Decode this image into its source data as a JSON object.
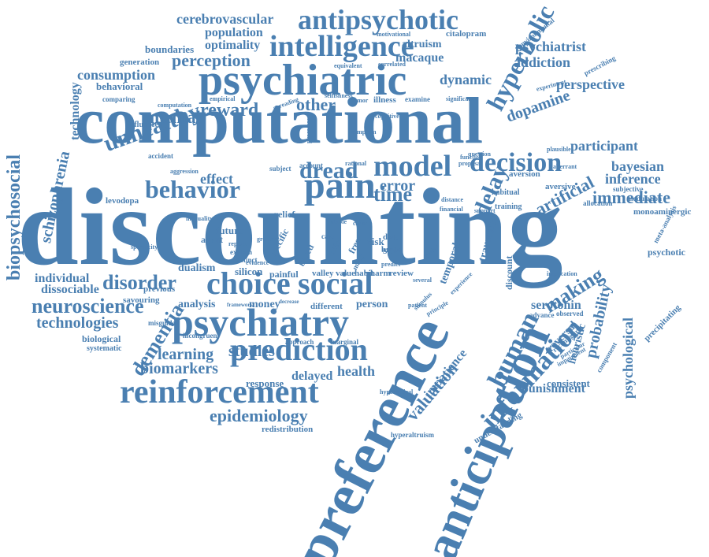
{
  "cloud": {
    "color": "#4a7fb1",
    "words": [
      "discounting",
      "computational",
      "preference",
      "anticipation",
      "psychiatric",
      "psychiatry",
      "antipsychotic",
      "intelligence",
      "reinforcement",
      "information",
      "prediction",
      "pain",
      "choice",
      "social",
      "behavior",
      "model",
      "decision",
      "human",
      "unhealthy",
      "hyperbolic",
      "delay",
      "dread",
      "neuroscience",
      "biopsychosocial",
      "schizophrenia",
      "dementia",
      "valuation",
      "epidemiology",
      "artificial",
      "disorder",
      "immediate",
      "perception",
      "cerebrovascular",
      "reward",
      "making",
      "mental",
      "time",
      "consumption",
      "other",
      "probability",
      "psychological",
      "dopamine",
      "perspective",
      "participant",
      "dynamic",
      "macaque",
      "addiction",
      "psychiatrist",
      "population",
      "optimality",
      "technologies",
      "technology",
      "studies",
      "learning",
      "biomarkers",
      "health",
      "delayed",
      "punishment",
      "bayesian",
      "inference",
      "error",
      "effect",
      "serotonin",
      "impatience",
      "temporal",
      "traumatic",
      "reversal",
      "heuristic",
      "individual",
      "dissociable",
      "analysis",
      "dualism",
      "silicon",
      "painful",
      "person",
      "money",
      "response",
      "boundaries",
      "generation",
      "behavioral",
      "altruism",
      "citalopram",
      "prescribing",
      "environmental",
      "influence",
      "comparing",
      "levodopa",
      "agent",
      "future",
      "relief",
      "self",
      "risk",
      "data",
      "brain",
      "habit",
      "review",
      "valley",
      "value",
      "discount",
      "distinct",
      "consistent",
      "understanding",
      "redistribution",
      "hyperaltruism",
      "hypothetical",
      "different",
      "biological",
      "systematic",
      "previous",
      "savouring",
      "misguided",
      "incongruent",
      "approach",
      "marginal",
      "component",
      "precipitating",
      "psychotic",
      "monoaminergic",
      "meta-analysis",
      "modulation",
      "subjective",
      "allocation",
      "aversive",
      "aversion",
      "training",
      "habitual",
      "observed",
      "advance",
      "reconfigure",
      "implication",
      "aberrant",
      "plausible",
      "accident",
      "computation",
      "empirical",
      "spreading",
      "illness",
      "examine",
      "significant",
      "motivational",
      "equivalent",
      "correlated",
      "selfishness",
      "experiment",
      "particular",
      "impairment",
      "specificity",
      "inequality",
      "framework",
      "decrease",
      "stimulus",
      "several",
      "patient",
      "experience",
      "principle",
      "predict",
      "harm",
      "based",
      "specific",
      "explain",
      "evidence",
      "cognitive",
      "symptom",
      "processes",
      "subject",
      "account",
      "aggression",
      "greater",
      "function",
      "proposal",
      "financial",
      "support",
      "question",
      "rational",
      "distance",
      "divalue",
      "free",
      "many",
      "case",
      "rate",
      "tumor",
      "replace",
      "cause",
      "stable"
    ]
  }
}
